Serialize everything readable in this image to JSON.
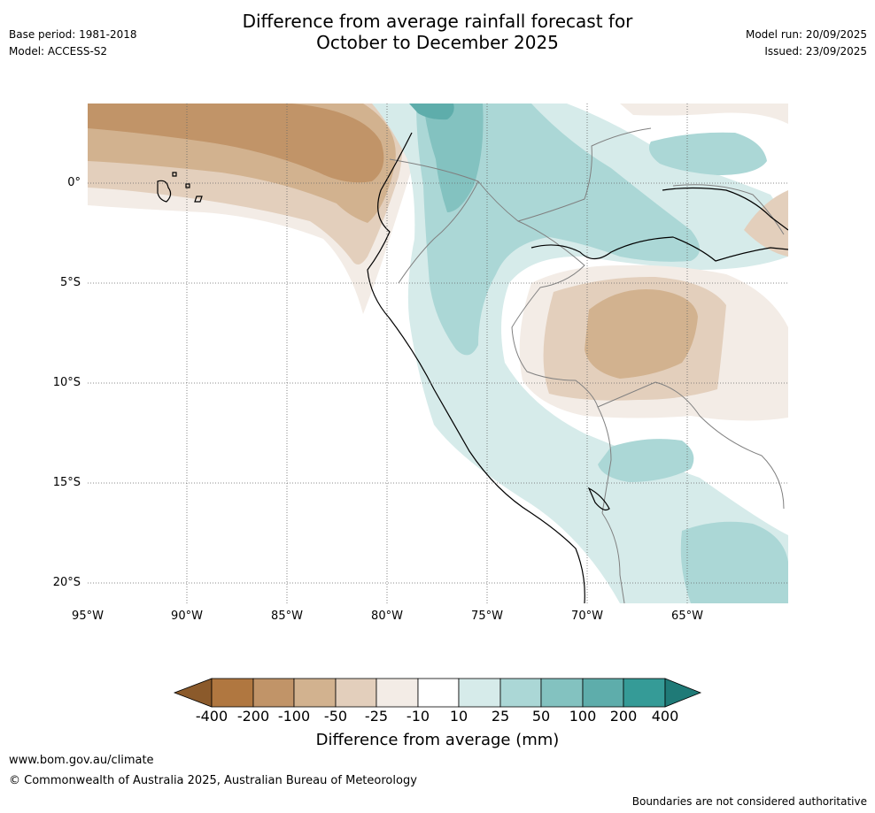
{
  "header": {
    "base_period": "Base period: 1981-2018",
    "model": "Model: ACCESS-S2",
    "title_line1": "Difference from average rainfall forecast for",
    "title_line2": "October to December 2025",
    "model_run": "Model run: 20/09/2025",
    "issued": "Issued: 23/09/2025"
  },
  "map": {
    "lat_ticks": [
      "0°",
      "5°S",
      "10°S",
      "15°S",
      "20°S"
    ],
    "lon_ticks": [
      "95°W",
      "90°W",
      "85°W",
      "80°W",
      "75°W",
      "70°W",
      "65°W"
    ],
    "region": "Western South America",
    "colors": {
      "neg400": "#8b5a2b",
      "neg200": "#b07740",
      "neg100": "#c19468",
      "neg50": "#d2b28f",
      "neg25": "#e3cfbc",
      "neg10": "#f3ece6",
      "neutral": "#ffffff",
      "pos10": "#d6ebea",
      "pos25": "#abd7d6",
      "pos50": "#83c2c0",
      "pos100": "#5eadab",
      "pos200": "#359b97",
      "pos400": "#1f7a77",
      "coast": "#000000",
      "border": "#808080",
      "grid": "#666666"
    }
  },
  "colorbar": {
    "labels": [
      "-400",
      "-200",
      "-100",
      "-50",
      "-25",
      "-10",
      "10",
      "25",
      "50",
      "100",
      "200",
      "400"
    ],
    "title": "Difference from average (mm)"
  },
  "footer": {
    "url": "www.bom.gov.au/climate",
    "copyright": "© Commonwealth of Australia 2025, Australian Bureau of Meteorology",
    "disclaimer": "Boundaries are not considered authoritative"
  }
}
